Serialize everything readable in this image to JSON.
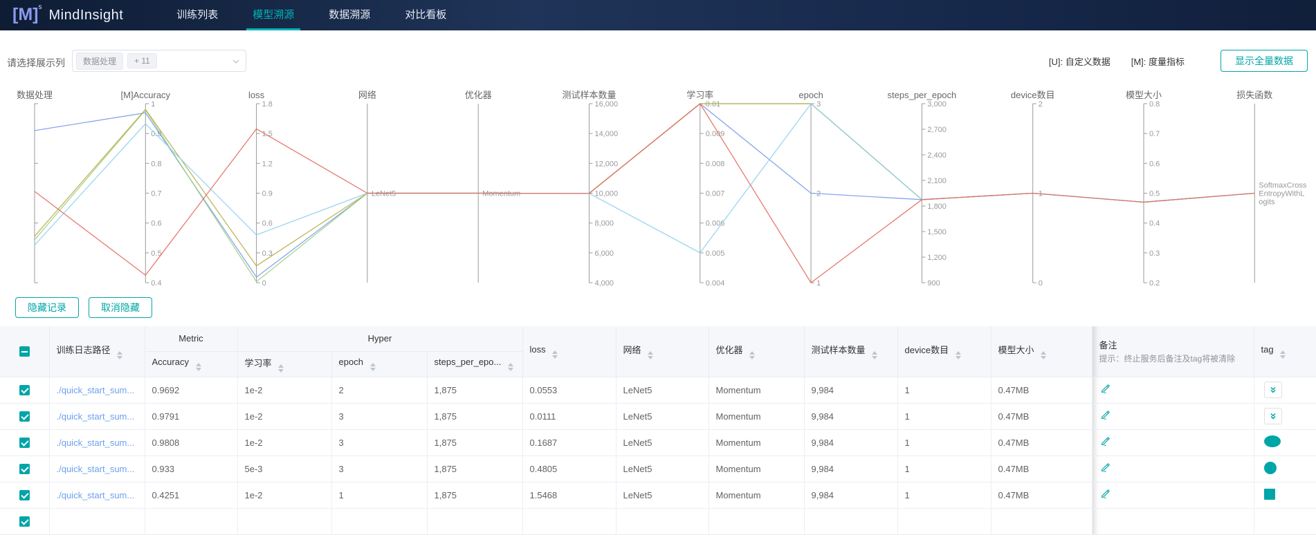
{
  "theme": {
    "teal": "#00a5a7",
    "navbar_bg": "#16284a",
    "active_tab": "#00b3b5",
    "link_blue": "#6d9ff0",
    "logo_blue": "#8a9bed"
  },
  "navbar": {
    "logo_bracket": "[M]",
    "logo_sup": "s",
    "logo_text": "MindInsight",
    "tabs": [
      {
        "label": "训练列表",
        "active": false
      },
      {
        "label": "模型溯源",
        "active": true
      },
      {
        "label": "数据溯源",
        "active": false
      },
      {
        "label": "对比看板",
        "active": false
      }
    ]
  },
  "toolbar": {
    "select_label": "请选择展示列",
    "selected_tag": "数据处理",
    "more_tag": "+ 11",
    "legend_u": "[U]: 自定义数据",
    "legend_m": "[M]: 度量指标",
    "show_all_button": "显示全量数据"
  },
  "actions": {
    "hide_button": "隐藏记录",
    "unhide_button": "取消隐藏"
  },
  "chart_data": {
    "type": "parallel",
    "axes": [
      {
        "name": "数据处理",
        "ticks": [
          "",
          "",
          "",
          ""
        ]
      },
      {
        "name": "[M]Accuracy",
        "range": [
          0.4,
          1
        ],
        "ticks": [
          "1",
          "0.9",
          "0.8",
          "0.7",
          "0.6",
          "0.5",
          "0.4"
        ]
      },
      {
        "name": "loss",
        "range": [
          0,
          1.8
        ],
        "ticks": [
          "1.8",
          "1.5",
          "1.2",
          "0.9",
          "0.6",
          "0.3",
          "0"
        ]
      },
      {
        "name": "网络",
        "ticks": [],
        "value_labels": [
          {
            "lines": [
              "LeNet5"
            ],
            "frac": 0.5
          }
        ]
      },
      {
        "name": "优化器",
        "ticks": [],
        "value_labels": [
          {
            "lines": [
              "Momentum"
            ],
            "frac": 0.5
          }
        ]
      },
      {
        "name": "测试样本数量",
        "range": [
          4000,
          16000
        ],
        "ticks": [
          "16,000",
          "14,000",
          "12,000",
          "10,000",
          "8,000",
          "6,000",
          "4,000"
        ]
      },
      {
        "name": "学习率",
        "range": [
          0.004,
          0.01
        ],
        "ticks": [
          "0.01",
          "0.009",
          "0.008",
          "0.007",
          "0.006",
          "0.005",
          "0.004"
        ]
      },
      {
        "name": "epoch",
        "range": [
          1,
          3
        ],
        "ticks": [
          "3",
          "2",
          "1"
        ]
      },
      {
        "name": "steps_per_epoch",
        "range": [
          900,
          3000
        ],
        "ticks": [
          "3,000",
          "2,700",
          "2,400",
          "2,100",
          "1,800",
          "1,500",
          "1,200",
          "900"
        ]
      },
      {
        "name": "device数目",
        "range": [
          0,
          2
        ],
        "ticks": [
          "2",
          "1",
          "0"
        ]
      },
      {
        "name": "模型大小",
        "range": [
          0.2,
          0.8
        ],
        "ticks": [
          "0.8",
          "0.7",
          "0.6",
          "0.5",
          "0.4",
          "0.3",
          "0.2"
        ]
      },
      {
        "name": "损失函数",
        "ticks": [],
        "value_labels": [
          {
            "lines": [
              "SoftmaxCross",
              "EntropyWithL",
              "ogits"
            ],
            "frac": 0.5
          }
        ]
      }
    ],
    "series": [
      {
        "name": "record-1",
        "color": "#7b9ce8",
        "raw": {
          "accuracy": 0.9692,
          "loss": 0.0553,
          "network": "LeNet5",
          "optimizer": "Momentum",
          "test_samples": 9984,
          "learning_rate": 0.01,
          "epoch": 2,
          "steps_per_epoch": 1875,
          "device_num": 1,
          "model_size_mb": 0.47,
          "loss_fn": "SoftmaxCrossEntropyWithLogits"
        },
        "values_norm": [
          0.85,
          0.949,
          0.031,
          0.5,
          0.5,
          0.499,
          1,
          0.5,
          0.464,
          0.5,
          0.45,
          0.5
        ]
      },
      {
        "name": "record-2",
        "color": "#9ed07e",
        "raw": {
          "accuracy": 0.9791,
          "loss": 0.0111,
          "network": "LeNet5",
          "optimizer": "Momentum",
          "test_samples": 9984,
          "learning_rate": 0.01,
          "epoch": 3,
          "steps_per_epoch": 1875,
          "device_num": 1,
          "model_size_mb": 0.47,
          "loss_fn": "SoftmaxCrossEntropyWithLogits"
        },
        "values_norm": [
          0.24,
          0.965,
          0.006,
          0.5,
          0.5,
          0.499,
          1,
          1,
          0.464,
          0.5,
          0.45,
          0.5
        ]
      },
      {
        "name": "record-3",
        "color": "#b8ae4a",
        "raw": {
          "accuracy": 0.9808,
          "loss": 0.1687,
          "network": "LeNet5",
          "optimizer": "Momentum",
          "test_samples": 9984,
          "learning_rate": 0.01,
          "epoch": 3,
          "steps_per_epoch": 1875,
          "device_num": 1,
          "model_size_mb": 0.47,
          "loss_fn": "SoftmaxCrossEntropyWithLogits"
        },
        "values_norm": [
          0.26,
          0.968,
          0.094,
          0.5,
          0.5,
          0.499,
          1,
          1,
          0.464,
          0.5,
          0.45,
          0.5
        ]
      },
      {
        "name": "record-4",
        "color": "#8fd0ef",
        "raw": {
          "accuracy": 0.933,
          "loss": 0.4805,
          "network": "LeNet5",
          "optimizer": "Momentum",
          "test_samples": 9984,
          "learning_rate": 0.005,
          "epoch": 3,
          "steps_per_epoch": 1875,
          "device_num": 1,
          "model_size_mb": 0.47,
          "loss_fn": "SoftmaxCrossEntropyWithLogits"
        },
        "values_norm": [
          0.21,
          0.888,
          0.267,
          0.5,
          0.5,
          0.499,
          0.167,
          1,
          0.464,
          0.5,
          0.45,
          0.5
        ]
      },
      {
        "name": "record-5",
        "color": "#e36a62",
        "raw": {
          "accuracy": 0.4251,
          "loss": 1.5468,
          "network": "LeNet5",
          "optimizer": "Momentum",
          "test_samples": 9984,
          "learning_rate": 0.01,
          "epoch": 1,
          "steps_per_epoch": 1875,
          "device_num": 1,
          "model_size_mb": 0.47,
          "loss_fn": "SoftmaxCrossEntropyWithLogits"
        },
        "values_norm": [
          0.51,
          0.042,
          0.859,
          0.5,
          0.5,
          0.499,
          1,
          0,
          0.464,
          0.5,
          0.45,
          0.5
        ]
      }
    ]
  },
  "table": {
    "header": {
      "path": "训练日志路径",
      "metric_group": "Metric",
      "hyper_group": "Hyper",
      "accuracy": "Accuracy",
      "lr": "学习率",
      "epoch": "epoch",
      "steps": "steps_per_epo...",
      "loss": "loss",
      "network": "网络",
      "optimizer": "优化器",
      "test_samples": "测试样本数量",
      "device_num": "device数目",
      "model_size": "模型大小",
      "remark_title": "备注",
      "remark_hint": "提示：终止服务后备注及tag将被清除",
      "tag": "tag"
    },
    "rows": [
      {
        "path": "./quick_start_sum...",
        "accuracy": "0.9692",
        "lr": "1e-2",
        "epoch": "2",
        "steps": "1,875",
        "loss": "0.0553",
        "network": "LeNet5",
        "optimizer": "Momentum",
        "test_samples": "9,984",
        "device_num": "1",
        "model_size": "0.47MB",
        "tag_icon": "double-chevron-down"
      },
      {
        "path": "./quick_start_sum...",
        "accuracy": "0.9791",
        "lr": "1e-2",
        "epoch": "3",
        "steps": "1,875",
        "loss": "0.0111",
        "network": "LeNet5",
        "optimizer": "Momentum",
        "test_samples": "9,984",
        "device_num": "1",
        "model_size": "0.47MB",
        "tag_icon": "double-chevron-down"
      },
      {
        "path": "./quick_start_sum...",
        "accuracy": "0.9808",
        "lr": "1e-2",
        "epoch": "3",
        "steps": "1,875",
        "loss": "0.1687",
        "network": "LeNet5",
        "optimizer": "Momentum",
        "test_samples": "9,984",
        "device_num": "1",
        "model_size": "0.47MB",
        "tag_icon": "teal-ellipse"
      },
      {
        "path": "./quick_start_sum...",
        "accuracy": "0.933",
        "lr": "5e-3",
        "epoch": "3",
        "steps": "1,875",
        "loss": "0.4805",
        "network": "LeNet5",
        "optimizer": "Momentum",
        "test_samples": "9,984",
        "device_num": "1",
        "model_size": "0.47MB",
        "tag_icon": "teal-circle"
      },
      {
        "path": "./quick_start_sum...",
        "accuracy": "0.4251",
        "lr": "1e-2",
        "epoch": "1",
        "steps": "1,875",
        "loss": "1.5468",
        "network": "LeNet5",
        "optimizer": "Momentum",
        "test_samples": "9,984",
        "device_num": "1",
        "model_size": "0.47MB",
        "tag_icon": "teal-square"
      }
    ]
  }
}
